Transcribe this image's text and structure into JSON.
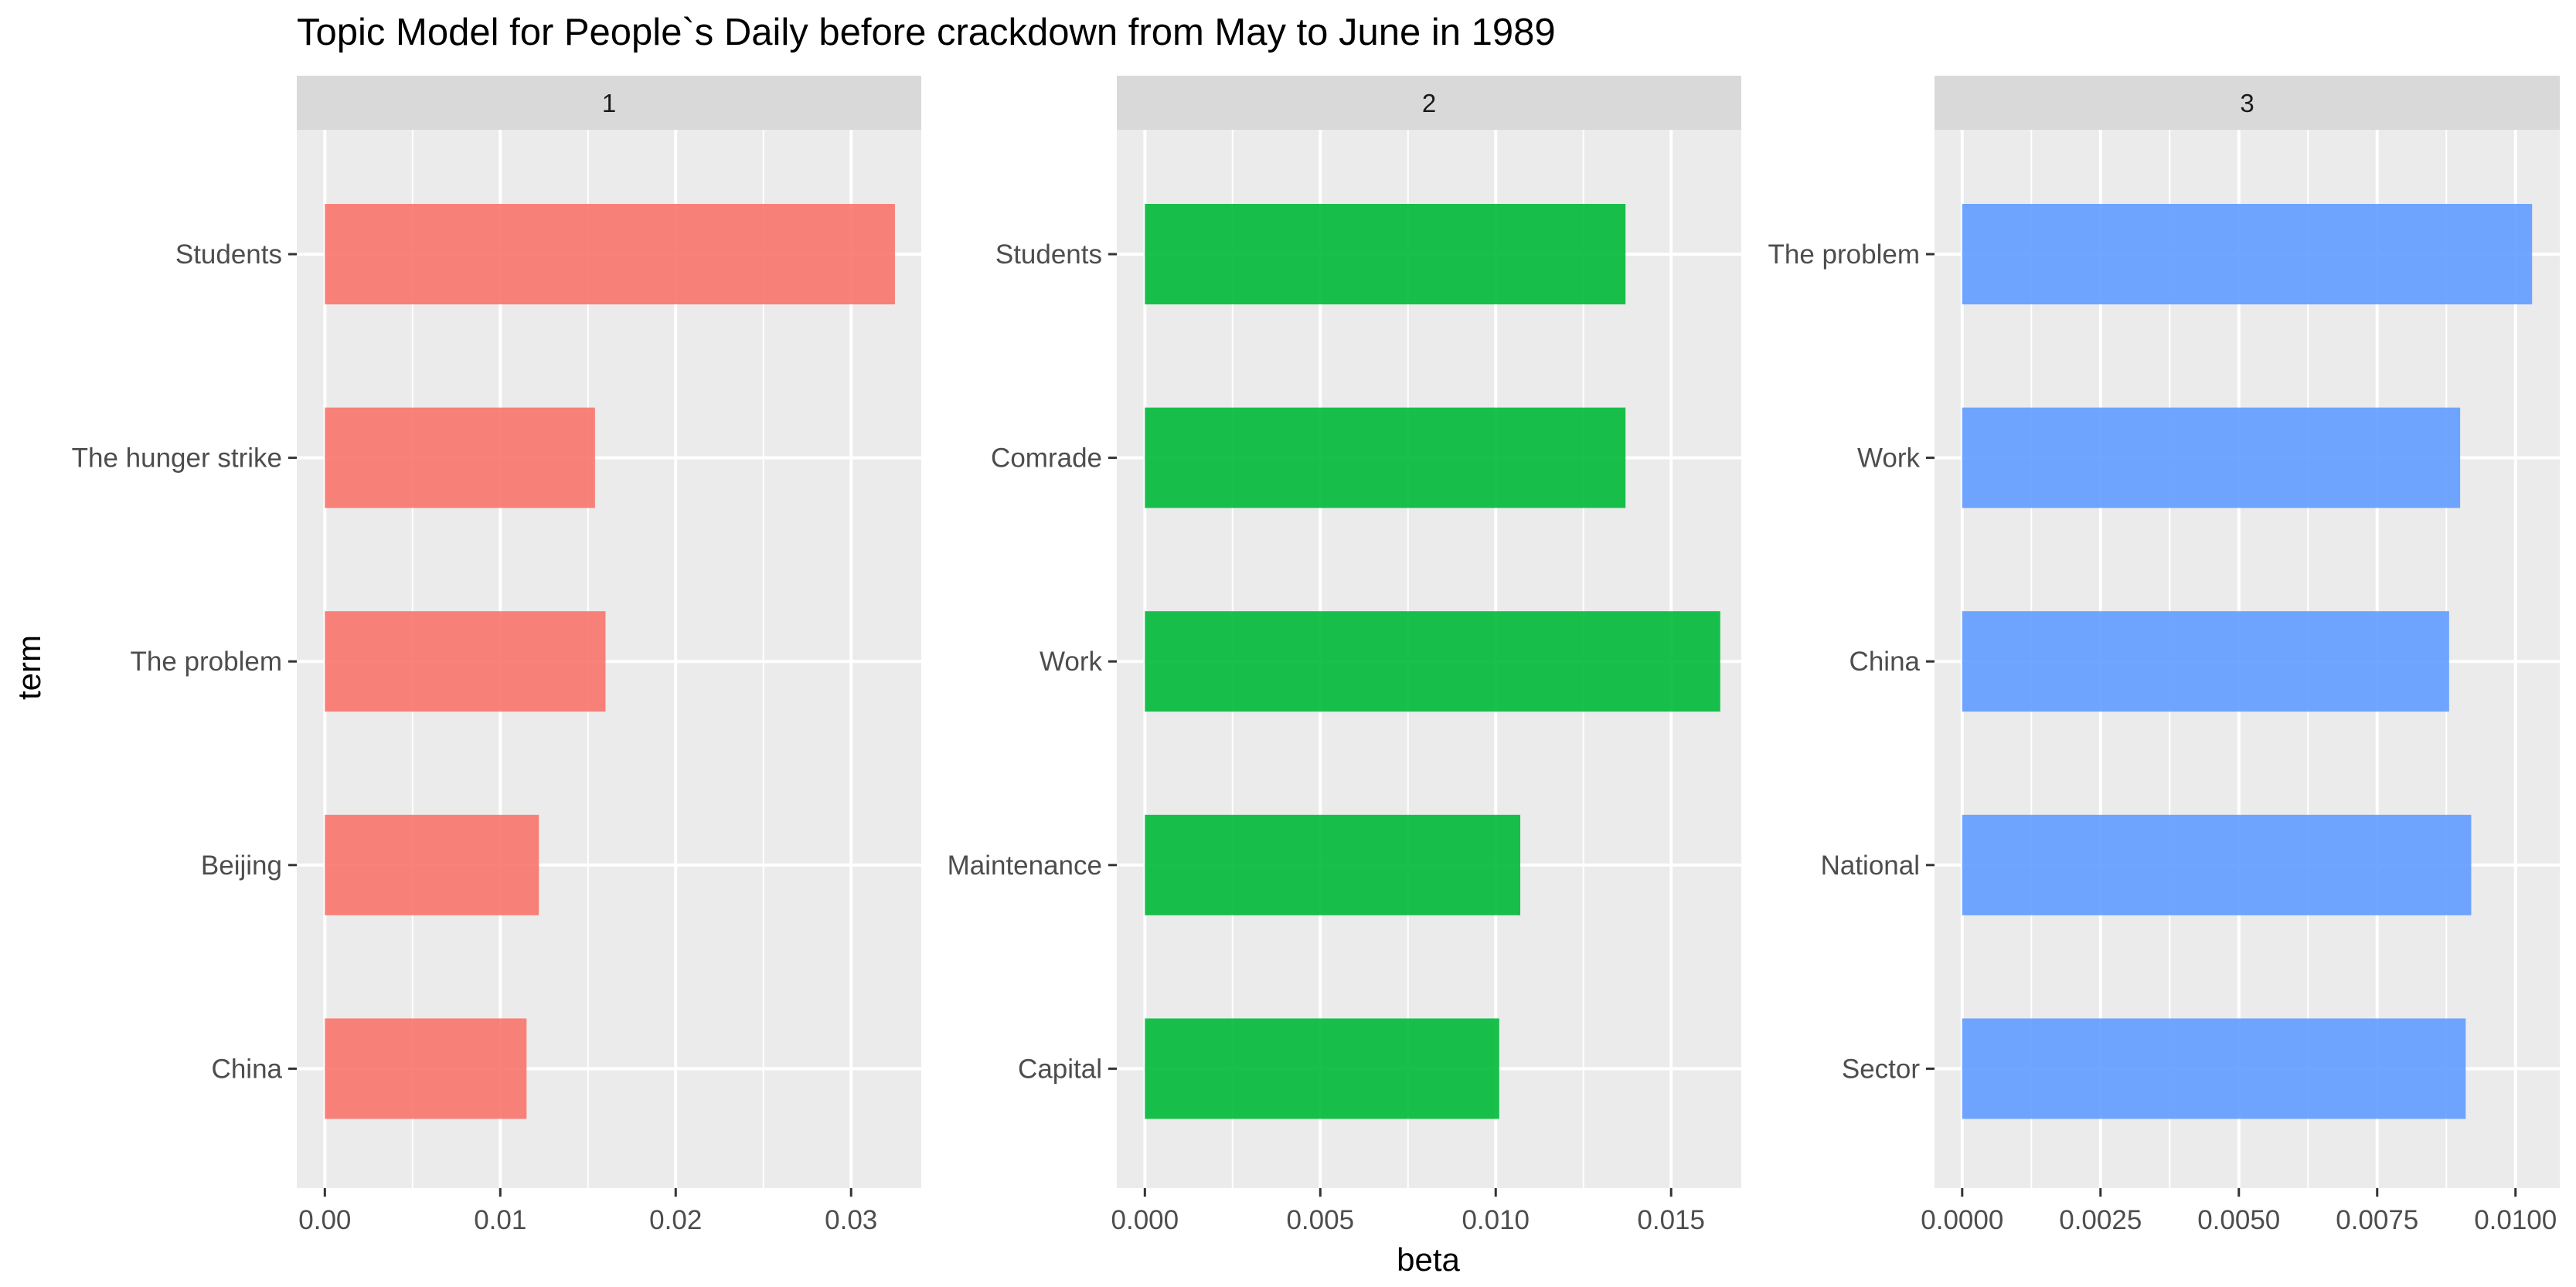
{
  "chart_data": {
    "type": "bar",
    "title": "Topic Model for People`s Daily before crackdown from May to June in 1989",
    "xlabel": "beta",
    "ylabel": "term",
    "orientation": "horizontal",
    "grid": true,
    "legend": "none",
    "panels": [
      {
        "strip": "1",
        "color": "#F8766D",
        "xlim": [
          -0.0016,
          0.034
        ],
        "x_ticks": [
          0,
          0.01,
          0.02,
          0.03
        ],
        "x_tick_labels": [
          "0.00",
          "0.01",
          "0.02",
          "0.03"
        ],
        "categories": [
          "Students",
          "The hunger strike",
          "The problem",
          "Beijing",
          "China"
        ],
        "values": [
          0.0325,
          0.0154,
          0.016,
          0.0122,
          0.0115
        ]
      },
      {
        "strip": "2",
        "color": "#00BA38",
        "xlim": [
          -0.0008,
          0.017
        ],
        "x_ticks": [
          0,
          0.005,
          0.01,
          0.015
        ],
        "x_tick_labels": [
          "0.000",
          "0.005",
          "0.010",
          "0.015"
        ],
        "categories": [
          "Students",
          "Comrade",
          "Work",
          "Maintenance",
          "Capital"
        ],
        "values": [
          0.0137,
          0.0137,
          0.0164,
          0.0107,
          0.0101
        ]
      },
      {
        "strip": "3",
        "color": "#619CFF",
        "xlim": [
          -0.0005,
          0.0108
        ],
        "x_ticks": [
          0,
          0.0025,
          0.005,
          0.0075,
          0.01
        ],
        "x_tick_labels": [
          "0.0000",
          "0.0025",
          "0.0050",
          "0.0075",
          "0.0100"
        ],
        "categories": [
          "The problem",
          "Work",
          "China",
          "National",
          "Sector"
        ],
        "values": [
          0.0103,
          0.009,
          0.0088,
          0.0092,
          0.0091
        ]
      }
    ]
  }
}
